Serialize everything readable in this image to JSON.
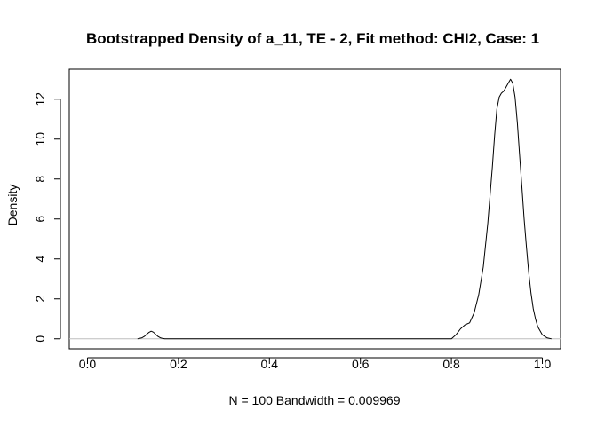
{
  "chart_data": {
    "type": "line",
    "title": "Bootstrapped Density of a_11, TE - 2, Fit method: CHI2, Case: 1",
    "xlabel": "N = 100   Bandwidth = 0.009969",
    "ylabel": "Density",
    "xlim": [
      -0.04,
      1.04
    ],
    "ylim": [
      -0.5,
      13.5
    ],
    "x_ticks": [
      0.0,
      0.2,
      0.4,
      0.6,
      0.8,
      1.0
    ],
    "x_tick_labels": [
      "0.0",
      "0.2",
      "0.4",
      "0.6",
      "0.8",
      "1.0"
    ],
    "y_ticks": [
      0,
      2,
      4,
      6,
      8,
      10,
      12
    ],
    "y_tick_labels": [
      "0",
      "2",
      "4",
      "6",
      "8",
      "10",
      "12"
    ],
    "baseline": 0,
    "baseline_color": "#bebebe",
    "line_color": "#000000",
    "grid": false,
    "series": [
      {
        "x": [
          0.11,
          0.12,
          0.125,
          0.13,
          0.135,
          0.14,
          0.145,
          0.15,
          0.155,
          0.16,
          0.165,
          0.17,
          0.8,
          0.81,
          0.82,
          0.83,
          0.84,
          0.85,
          0.86,
          0.87,
          0.88,
          0.89,
          0.895,
          0.9,
          0.905,
          0.91,
          0.915,
          0.92,
          0.925,
          0.93,
          0.935,
          0.94,
          0.945,
          0.95,
          0.955,
          0.96,
          0.965,
          0.97,
          0.975,
          0.98,
          0.985,
          0.99,
          1.0,
          1.01,
          1.02
        ],
        "y": [
          0.0,
          0.05,
          0.12,
          0.22,
          0.32,
          0.38,
          0.33,
          0.22,
          0.12,
          0.05,
          0.02,
          0.0,
          0.0,
          0.2,
          0.5,
          0.7,
          0.8,
          1.3,
          2.2,
          3.6,
          5.8,
          8.6,
          10.2,
          11.5,
          12.1,
          12.3,
          12.4,
          12.6,
          12.8,
          13.0,
          12.8,
          12.1,
          10.8,
          9.2,
          7.6,
          6.0,
          4.6,
          3.3,
          2.3,
          1.5,
          1.0,
          0.6,
          0.2,
          0.05,
          0.0
        ]
      }
    ]
  }
}
